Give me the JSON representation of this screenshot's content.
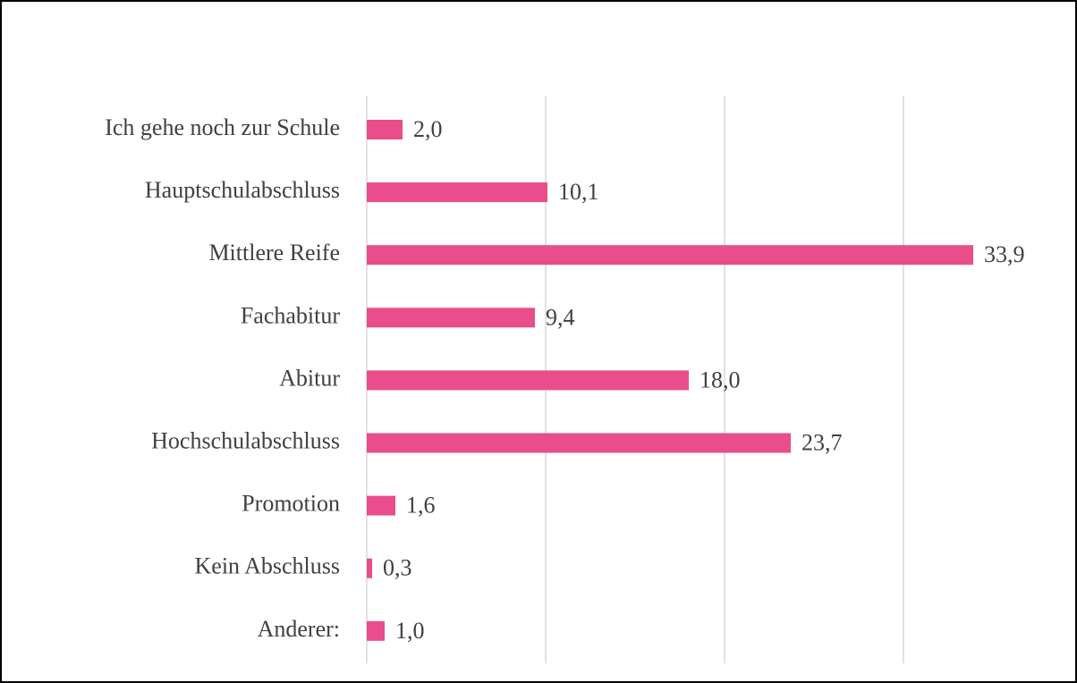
{
  "chart_data": {
    "type": "hbar",
    "categories": [
      "Ich gehe noch zur Schule",
      "Hauptschulabschluss",
      "Mittlere Reife",
      "Fachabitur",
      "Abitur",
      "Hochschulabschluss",
      "Promotion",
      "Kein Abschluss",
      "Anderer:"
    ],
    "values": [
      2.0,
      10.1,
      33.9,
      9.4,
      18.0,
      23.7,
      1.6,
      0.3,
      1.0
    ],
    "value_labels": [
      "2,0",
      "10,1",
      "33,9",
      "9,4",
      "18,0",
      "23,7",
      "1,6",
      "0,3",
      "1,0"
    ],
    "color": "#e94d8b",
    "xlim": [
      0,
      35
    ],
    "xticks": [
      0,
      10,
      20,
      30
    ],
    "grid": true
  }
}
